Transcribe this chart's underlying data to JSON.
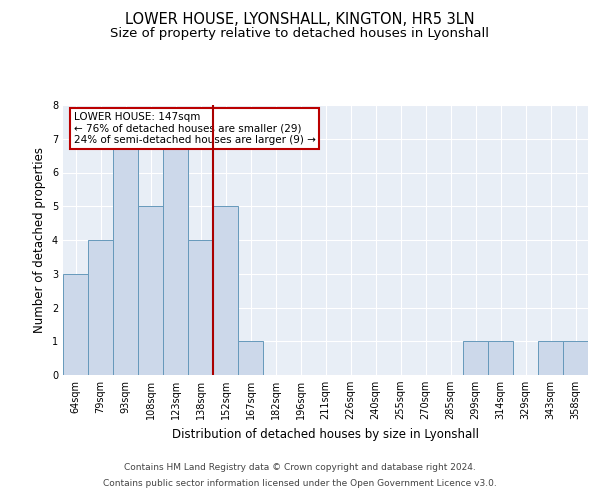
{
  "title": "LOWER HOUSE, LYONSHALL, KINGTON, HR5 3LN",
  "subtitle": "Size of property relative to detached houses in Lyonshall",
  "xlabel": "Distribution of detached houses by size in Lyonshall",
  "ylabel": "Number of detached properties",
  "categories": [
    "64sqm",
    "79sqm",
    "93sqm",
    "108sqm",
    "123sqm",
    "138sqm",
    "152sqm",
    "167sqm",
    "182sqm",
    "196sqm",
    "211sqm",
    "226sqm",
    "240sqm",
    "255sqm",
    "270sqm",
    "285sqm",
    "299sqm",
    "314sqm",
    "329sqm",
    "343sqm",
    "358sqm"
  ],
  "values": [
    3,
    4,
    7,
    5,
    7,
    4,
    5,
    1,
    0,
    0,
    0,
    0,
    0,
    0,
    0,
    0,
    1,
    1,
    0,
    1,
    1
  ],
  "bar_color": "#ccd8ea",
  "bar_edge_color": "#6699bb",
  "background_color": "#e8eef6",
  "vline_color": "#aa0000",
  "annotation_text": "LOWER HOUSE: 147sqm\n← 76% of detached houses are smaller (29)\n24% of semi-detached houses are larger (9) →",
  "annotation_box_color": "#bb0000",
  "ylim": [
    0,
    8
  ],
  "yticks": [
    0,
    1,
    2,
    3,
    4,
    5,
    6,
    7,
    8
  ],
  "footer_line1": "Contains HM Land Registry data © Crown copyright and database right 2024.",
  "footer_line2": "Contains public sector information licensed under the Open Government Licence v3.0.",
  "title_fontsize": 10.5,
  "subtitle_fontsize": 9.5,
  "ylabel_fontsize": 8.5,
  "xlabel_fontsize": 8.5,
  "tick_fontsize": 7,
  "footer_fontsize": 6.5,
  "annotation_fontsize": 7.5
}
